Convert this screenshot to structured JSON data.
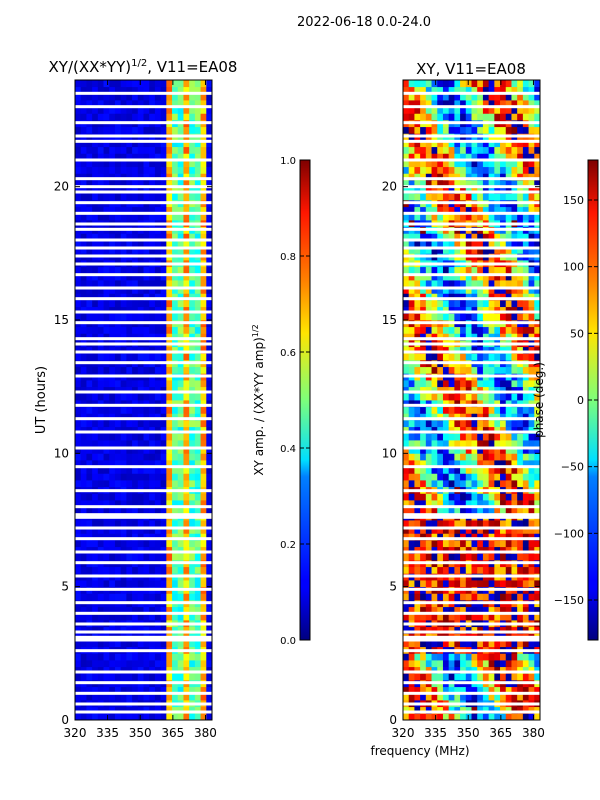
{
  "suptitle": "2022-06-18 0.0-24.0",
  "chart_data": [
    {
      "type": "heatmap",
      "title_main": "XY/(XX*YY)",
      "title_sup": "1/2",
      "title_rest": ", V11=EA08",
      "xlabel": "",
      "ylabel": "UT (hours)",
      "xlim": [
        320,
        383
      ],
      "ylim": [
        0,
        24
      ],
      "xticks": [
        "320",
        "335",
        "350",
        "365",
        "380"
      ],
      "yticks": [
        "0",
        "5",
        "10",
        "15",
        "20"
      ],
      "colorbar": {
        "label_main": "XY amp. / (XX*YY amp)",
        "label_sup": "1/2",
        "range": [
          0.0,
          1.0
        ],
        "ticks": [
          "0.0",
          "0.2",
          "0.4",
          "0.6",
          "0.8",
          "1.0"
        ],
        "colormap": "jet"
      },
      "bright_band_mhz": [
        362,
        381
      ],
      "flagged_hours": [
        0.3,
        0.6,
        1.0,
        1.4,
        1.8,
        2.6,
        3.0,
        3.1,
        3.3,
        3.6,
        4.0,
        4.4,
        4.9,
        5.4,
        5.9,
        6.3,
        6.8,
        7.2,
        7.6,
        7.7,
        8.0,
        8.6,
        9.5,
        10.2,
        10.8,
        11.3,
        11.8,
        12.3,
        12.9,
        13.4,
        13.8,
        14.1,
        14.3,
        14.9,
        15.3,
        15.8,
        16.2,
        16.7,
        17.1,
        17.4,
        17.7,
        18.0,
        18.4,
        18.6,
        19.0,
        19.4,
        19.8,
        20.0,
        20.3,
        21.0,
        21.7,
        21.9,
        22.4,
        23.0,
        23.5
      ]
    },
    {
      "type": "heatmap",
      "title_main": "XY, V11=EA08",
      "xlabel": "frequency (MHz)",
      "ylabel": "",
      "xlim": [
        320,
        383
      ],
      "ylim": [
        0,
        24
      ],
      "xticks": [
        "320",
        "335",
        "350",
        "365",
        "380"
      ],
      "yticks": [
        "0",
        "5",
        "10",
        "15",
        "20"
      ],
      "colorbar": {
        "label": "phase (deg.)",
        "range": [
          -180,
          180
        ],
        "ticks": [
          "-150",
          "-100",
          "-50",
          "0",
          "50",
          "100",
          "150"
        ],
        "colormap": "jet"
      },
      "flagged_hours": [
        0.3,
        0.6,
        1.0,
        1.4,
        1.8,
        2.6,
        3.0,
        3.1,
        3.3,
        3.6,
        4.0,
        4.4,
        4.9,
        5.4,
        5.9,
        6.3,
        6.8,
        7.2,
        7.6,
        7.7,
        8.0,
        8.6,
        9.5,
        10.2,
        10.8,
        11.3,
        11.8,
        12.3,
        12.9,
        13.4,
        13.8,
        14.1,
        14.3,
        14.9,
        15.3,
        15.8,
        16.2,
        16.7,
        17.1,
        17.4,
        17.7,
        18.0,
        18.4,
        18.6,
        19.0,
        19.4,
        19.8,
        20.0,
        20.3,
        21.0,
        21.7,
        21.9,
        22.4,
        23.0,
        23.5
      ]
    }
  ]
}
